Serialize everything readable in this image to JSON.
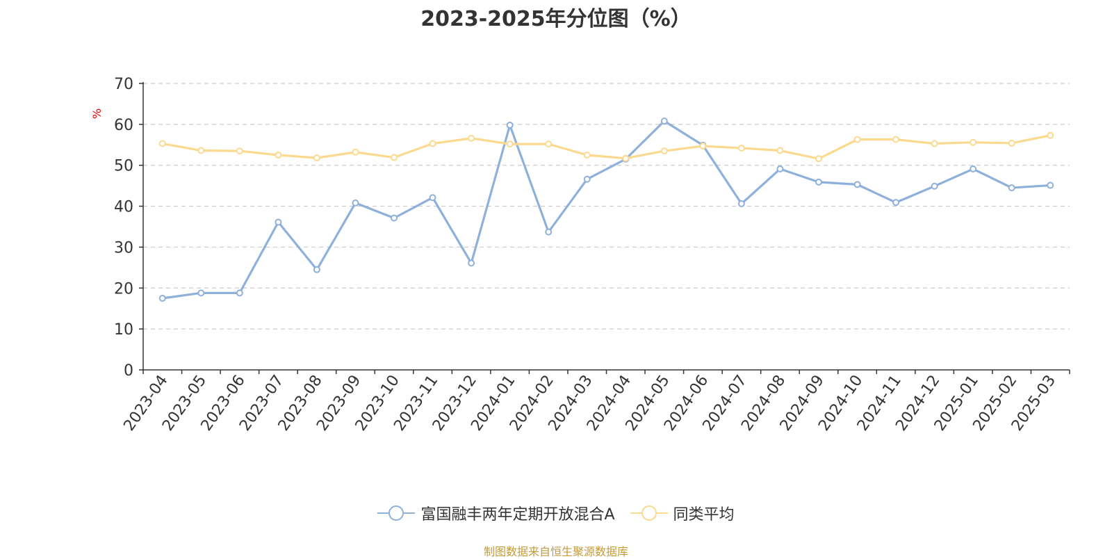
{
  "chart_data": {
    "type": "line",
    "title": "2023-2025年分位图（%）",
    "ylabel": "%",
    "ylim": [
      0,
      70
    ],
    "yticks": [
      0,
      10,
      20,
      30,
      40,
      50,
      60,
      70
    ],
    "grid": true,
    "legend_position": "bottom",
    "categories": [
      "2023-04",
      "2023-05",
      "2023-06",
      "2023-07",
      "2023-08",
      "2023-09",
      "2023-10",
      "2023-11",
      "2023-12",
      "2024-01",
      "2024-02",
      "2024-03",
      "2024-04",
      "2024-05",
      "2024-06",
      "2024-07",
      "2024-08",
      "2024-09",
      "2024-10",
      "2024-11",
      "2024-12",
      "2025-01",
      "2025-02",
      "2025-03"
    ],
    "series": [
      {
        "name": "富国融丰两年定期开放混合A",
        "color": "#8eb0da",
        "values": [
          17.5,
          18.8,
          18.8,
          36.1,
          24.5,
          40.8,
          37.1,
          42.1,
          26.1,
          59.8,
          33.7,
          46.6,
          51.5,
          60.8,
          54.9,
          40.6,
          49.1,
          45.9,
          45.3,
          40.9,
          44.9,
          49.1,
          44.5,
          45.1
        ]
      },
      {
        "name": "同类平均",
        "color": "#fbd98f",
        "values": [
          55.3,
          53.6,
          53.5,
          52.5,
          51.8,
          53.2,
          51.9,
          55.3,
          56.6,
          55.2,
          55.2,
          52.5,
          51.7,
          53.5,
          54.7,
          54.2,
          53.6,
          51.6,
          56.3,
          56.3,
          55.3,
          55.6,
          55.4,
          57.3
        ]
      }
    ],
    "source": "制图数据来自恒生聚源数据库"
  }
}
